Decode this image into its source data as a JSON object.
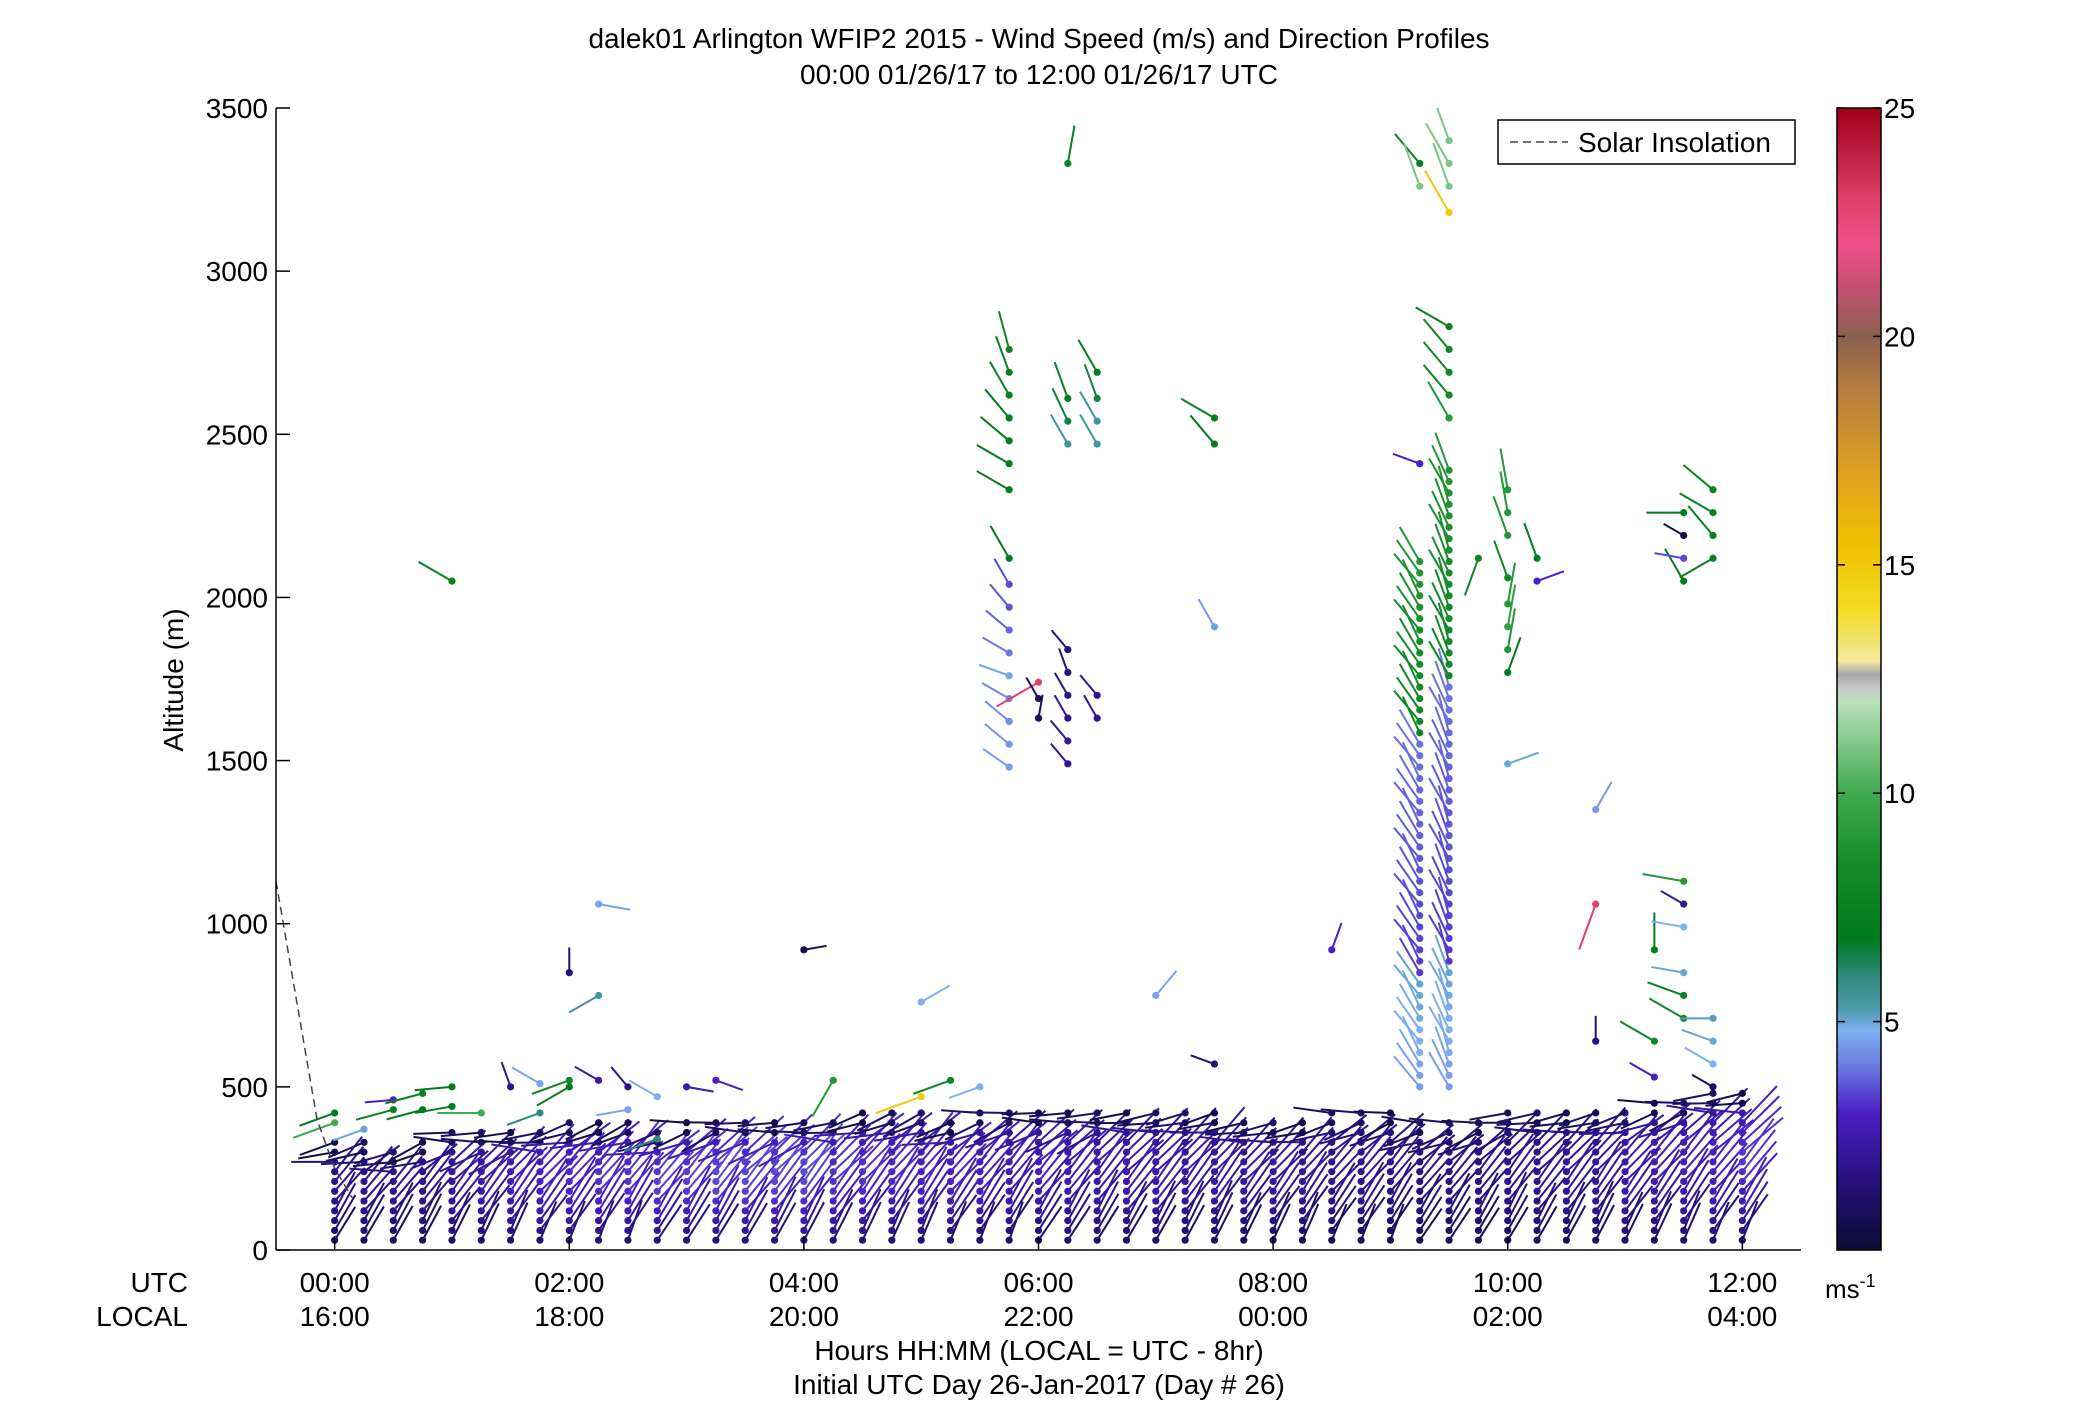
{
  "title": {
    "line1": "dalek01 Arlington WFIP2 2015 - Wind Speed (m/s) and Direction Profiles",
    "line2": "00:00 01/26/17 to 12:00 01/26/17  UTC"
  },
  "footer": {
    "line1": "Hours HH:MM  (LOCAL = UTC - 8hr)",
    "line2": "Initial UTC Day 26-Jan-2017 (Day # 26)"
  },
  "row_labels": {
    "utc": "UTC",
    "local": "LOCAL"
  },
  "legend": {
    "label": "Solar Insolation"
  },
  "colorbar": {
    "unit_base": "ms",
    "unit_exp": "-1",
    "ticks": [
      "5",
      "10",
      "15",
      "20",
      "25"
    ],
    "range": [
      0,
      25
    ],
    "stops": [
      {
        "v": 0,
        "c": "#0b0b33"
      },
      {
        "v": 1.5,
        "c": "#26107a"
      },
      {
        "v": 3,
        "c": "#4a1ec4"
      },
      {
        "v": 4,
        "c": "#6a78e0"
      },
      {
        "v": 4.8,
        "c": "#7fb0f2"
      },
      {
        "v": 5.3,
        "c": "#4a9aa8"
      },
      {
        "v": 6,
        "c": "#2e8a7a"
      },
      {
        "v": 6.8,
        "c": "#007a1e"
      },
      {
        "v": 8.5,
        "c": "#168c2a"
      },
      {
        "v": 10,
        "c": "#40aa50"
      },
      {
        "v": 12,
        "c": "#b9e0b9"
      },
      {
        "v": 12.3,
        "c": "#c8c8c8"
      },
      {
        "v": 12.6,
        "c": "#a8a8a8"
      },
      {
        "v": 12.9,
        "c": "#f4e8a0"
      },
      {
        "v": 14,
        "c": "#f0dc20"
      },
      {
        "v": 15.5,
        "c": "#f0c000"
      },
      {
        "v": 17,
        "c": "#e0a020"
      },
      {
        "v": 19,
        "c": "#b07a40"
      },
      {
        "v": 20,
        "c": "#8a6050"
      },
      {
        "v": 21,
        "c": "#c05070"
      },
      {
        "v": 22,
        "c": "#f0508a"
      },
      {
        "v": 23,
        "c": "#e0406a"
      },
      {
        "v": 25,
        "c": "#a00018"
      }
    ]
  },
  "chart_data": {
    "type": "scatter",
    "title": "dalek01 Arlington WFIP2 2015 - Wind Speed (m/s) and Direction Profiles",
    "subtitle": "00:00 01/26/17 to 12:00 01/26/17  UTC",
    "xlabel": "Hours HH:MM  (LOCAL = UTC - 8hr)",
    "ylabel": "Altitude (m)",
    "xlim": [
      -0.5,
      12.5
    ],
    "ylim": [
      0,
      3500
    ],
    "yticks": [
      "0",
      "500",
      "1000",
      "1500",
      "2000",
      "2500",
      "3000",
      "3500"
    ],
    "xticks_utc": [
      "00:00",
      "02:00",
      "04:00",
      "06:00",
      "08:00",
      "10:00",
      "12:00"
    ],
    "xticks_local": [
      "16:00",
      "18:00",
      "20:00",
      "22:00",
      "00:00",
      "02:00",
      "04:00"
    ],
    "grid": false,
    "legend_position": "top-right",
    "solar_insolation": {
      "style": "dashed",
      "color": "#444444",
      "x": [
        -0.5,
        -0.15,
        0.0,
        0.15
      ],
      "y": [
        1130,
        400,
        250,
        160
      ]
    },
    "profiles": {
      "x_start": 0.0,
      "x_step": 0.25,
      "x_end": 12.0,
      "altitude_step": 30,
      "lowlevel_top": [
        340,
        330,
        320,
        330,
        360,
        360,
        370,
        380,
        390,
        390,
        400,
        380,
        390,
        400,
        400,
        410,
        410,
        400,
        420,
        420,
        420,
        410,
        420,
        420,
        430,
        420,
        420,
        430,
        420,
        420,
        420,
        410,
        400,
        400,
        420,
        420,
        430,
        410,
        400,
        400,
        420,
        420,
        420,
        430,
        440,
        450,
        470,
        480,
        490
      ],
      "lowlevel_speed": [
        1.5,
        1.5,
        1.5,
        1.5,
        1.8,
        2,
        2.2,
        2.4,
        2.5,
        2.6,
        2.6,
        2.7,
        2.7,
        2.8,
        2.8,
        2.8,
        2.8,
        2.6,
        2.6,
        2.5,
        2.4,
        2.4,
        2.3,
        2.2,
        2.2,
        2.1,
        2,
        2,
        2,
        1.9,
        1.9,
        1.8,
        1.8,
        1.7,
        1.6,
        1.6,
        1.5,
        1.4,
        1.4,
        1.4,
        1.5,
        1.6,
        1.7,
        1.8,
        2,
        2.1,
        2.2,
        2.4,
        2.6
      ]
    },
    "elevated_barbs": [
      {
        "x": 0.0,
        "y": 420,
        "speed": 7,
        "dir": 250
      },
      {
        "x": 0.0,
        "y": 390,
        "speed": 10,
        "dir": 250
      },
      {
        "x": 0.25,
        "y": 370,
        "speed": 5,
        "dir": 250
      },
      {
        "x": 0.5,
        "y": 430,
        "speed": 7.5,
        "dir": 255
      },
      {
        "x": 0.5,
        "y": 460,
        "speed": 3,
        "dir": 265
      },
      {
        "x": 0.75,
        "y": 480,
        "speed": 7.5,
        "dir": 255
      },
      {
        "x": 0.75,
        "y": 430,
        "speed": 7,
        "dir": 255
      },
      {
        "x": 1.0,
        "y": 500,
        "speed": 7,
        "dir": 265
      },
      {
        "x": 1.0,
        "y": 440,
        "speed": 7,
        "dir": 260
      },
      {
        "x": 1.0,
        "y": 2050,
        "speed": 7.5,
        "dir": 300
      },
      {
        "x": 1.25,
        "y": 420,
        "speed": 10,
        "dir": 270
      },
      {
        "x": 1.5,
        "y": 500,
        "speed": 2,
        "dir": 340
      },
      {
        "x": 1.75,
        "y": 510,
        "speed": 4.6,
        "dir": 300
      },
      {
        "x": 1.75,
        "y": 420,
        "speed": 6,
        "dir": 250
      },
      {
        "x": 2.0,
        "y": 850,
        "speed": 1.5,
        "dir": 0
      },
      {
        "x": 2.0,
        "y": 520,
        "speed": 8,
        "dir": 250
      },
      {
        "x": 2.0,
        "y": 500,
        "speed": 7,
        "dir": 240
      },
      {
        "x": 2.25,
        "y": 780,
        "speed": 5.5,
        "dir": 240
      },
      {
        "x": 2.25,
        "y": 520,
        "speed": 2.5,
        "dir": 300
      },
      {
        "x": 2.25,
        "y": 1060,
        "speed": 4.6,
        "dir": 100
      },
      {
        "x": 2.5,
        "y": 430,
        "speed": 4.6,
        "dir": 260
      },
      {
        "x": 2.5,
        "y": 500,
        "speed": 1.8,
        "dir": 320
      },
      {
        "x": 2.75,
        "y": 470,
        "speed": 4.8,
        "dir": 300
      },
      {
        "x": 2.75,
        "y": 340,
        "speed": 6,
        "dir": 250
      },
      {
        "x": 3.0,
        "y": 500,
        "speed": 2.5,
        "dir": 100
      },
      {
        "x": 3.25,
        "y": 520,
        "speed": 3,
        "dir": 110
      },
      {
        "x": 4.0,
        "y": 920,
        "speed": 0.5,
        "dir": 80
      },
      {
        "x": 4.25,
        "y": 520,
        "speed": 9,
        "dir": 210
      },
      {
        "x": 5.0,
        "y": 760,
        "speed": 4.8,
        "dir": 60
      },
      {
        "x": 5.0,
        "y": 470,
        "speed": 15,
        "dir": 250
      },
      {
        "x": 5.25,
        "y": 520,
        "speed": 8,
        "dir": 250
      },
      {
        "x": 5.5,
        "y": 500,
        "speed": 4.8,
        "dir": 250
      },
      {
        "x": 5.75,
        "y": 2120,
        "speed": 7,
        "dir": 330
      },
      {
        "x": 5.75,
        "y": 2330,
        "speed": 7,
        "dir": 300
      },
      {
        "x": 5.75,
        "y": 2410,
        "speed": 7,
        "dir": 300
      },
      {
        "x": 5.75,
        "y": 2480,
        "speed": 7,
        "dir": 310
      },
      {
        "x": 5.75,
        "y": 2550,
        "speed": 7,
        "dir": 320
      },
      {
        "x": 5.75,
        "y": 2620,
        "speed": 7.5,
        "dir": 330
      },
      {
        "x": 5.75,
        "y": 2690,
        "speed": 7.5,
        "dir": 340
      },
      {
        "x": 5.75,
        "y": 2760,
        "speed": 8,
        "dir": 345
      },
      {
        "x": 5.75,
        "y": 1480,
        "speed": 4.5,
        "dir": 305
      },
      {
        "x": 5.75,
        "y": 1550,
        "speed": 4.4,
        "dir": 310
      },
      {
        "x": 5.75,
        "y": 1620,
        "speed": 4.3,
        "dir": 310
      },
      {
        "x": 5.75,
        "y": 1690,
        "speed": 4.2,
        "dir": 300
      },
      {
        "x": 5.75,
        "y": 1760,
        "speed": 4.6,
        "dir": 290
      },
      {
        "x": 5.75,
        "y": 1830,
        "speed": 4,
        "dir": 300
      },
      {
        "x": 5.75,
        "y": 1900,
        "speed": 3.8,
        "dir": 310
      },
      {
        "x": 5.75,
        "y": 1970,
        "speed": 3.6,
        "dir": 320
      },
      {
        "x": 5.75,
        "y": 2040,
        "speed": 3.5,
        "dir": 330
      },
      {
        "x": 6.0,
        "y": 1740,
        "speed": 23,
        "dir": 240
      },
      {
        "x": 6.0,
        "y": 1690,
        "speed": 1,
        "dir": 330
      },
      {
        "x": 6.0,
        "y": 1630,
        "speed": 0.8,
        "dir": 10
      },
      {
        "x": 6.25,
        "y": 1490,
        "speed": 2,
        "dir": 320
      },
      {
        "x": 6.25,
        "y": 1560,
        "speed": 2.2,
        "dir": 320
      },
      {
        "x": 6.25,
        "y": 1630,
        "speed": 2,
        "dir": 330
      },
      {
        "x": 6.25,
        "y": 1700,
        "speed": 1.8,
        "dir": 330
      },
      {
        "x": 6.25,
        "y": 1770,
        "speed": 1.6,
        "dir": 340
      },
      {
        "x": 6.25,
        "y": 1840,
        "speed": 1.5,
        "dir": 320
      },
      {
        "x": 6.25,
        "y": 2470,
        "speed": 5.5,
        "dir": 330
      },
      {
        "x": 6.25,
        "y": 2540,
        "speed": 6.5,
        "dir": 335
      },
      {
        "x": 6.25,
        "y": 2610,
        "speed": 7.5,
        "dir": 340
      },
      {
        "x": 6.25,
        "y": 3330,
        "speed": 7.5,
        "dir": 10
      },
      {
        "x": 6.5,
        "y": 1630,
        "speed": 2,
        "dir": 330
      },
      {
        "x": 6.5,
        "y": 1700,
        "speed": 2,
        "dir": 320
      },
      {
        "x": 6.5,
        "y": 2470,
        "speed": 5.5,
        "dir": 330
      },
      {
        "x": 6.5,
        "y": 2540,
        "speed": 5.5,
        "dir": 330
      },
      {
        "x": 6.5,
        "y": 2610,
        "speed": 6.5,
        "dir": 340
      },
      {
        "x": 6.5,
        "y": 2690,
        "speed": 7,
        "dir": 330
      },
      {
        "x": 7.0,
        "y": 780,
        "speed": 4.6,
        "dir": 40
      },
      {
        "x": 7.5,
        "y": 1910,
        "speed": 4.5,
        "dir": 330
      },
      {
        "x": 7.5,
        "y": 2470,
        "speed": 7,
        "dir": 320
      },
      {
        "x": 7.5,
        "y": 2550,
        "speed": 7.5,
        "dir": 300
      },
      {
        "x": 7.5,
        "y": 570,
        "speed": 1.5,
        "dir": 290
      },
      {
        "x": 8.5,
        "y": 920,
        "speed": 3,
        "dir": 20
      },
      {
        "x": 9.25,
        "y": 2410,
        "speed": 3,
        "dir": 290
      },
      {
        "x": 9.25,
        "y": 3330,
        "speed": 7.5,
        "dir": 320
      },
      {
        "x": 9.25,
        "y": 3260,
        "speed": 11,
        "dir": 340
      },
      {
        "x": 9.5,
        "y": 3180,
        "speed": 15,
        "dir": 330
      },
      {
        "x": 9.5,
        "y": 3260,
        "speed": 11,
        "dir": 340
      },
      {
        "x": 9.5,
        "y": 3330,
        "speed": 11,
        "dir": 330
      },
      {
        "x": 9.5,
        "y": 3400,
        "speed": 11,
        "dir": 340
      },
      {
        "x": 9.5,
        "y": 2550,
        "speed": 9,
        "dir": 330
      },
      {
        "x": 9.5,
        "y": 2620,
        "speed": 8,
        "dir": 320
      },
      {
        "x": 9.5,
        "y": 2690,
        "speed": 8,
        "dir": 320
      },
      {
        "x": 9.5,
        "y": 2760,
        "speed": 8,
        "dir": 320
      },
      {
        "x": 9.5,
        "y": 2830,
        "speed": 7.5,
        "dir": 300
      },
      {
        "x": 9.75,
        "y": 2120,
        "speed": 8,
        "dir": 200
      },
      {
        "x": 10.0,
        "y": 1770,
        "speed": 7,
        "dir": 20
      },
      {
        "x": 10.0,
        "y": 1840,
        "speed": 9,
        "dir": 10
      },
      {
        "x": 10.0,
        "y": 1910,
        "speed": 9.5,
        "dir": 10
      },
      {
        "x": 10.0,
        "y": 1980,
        "speed": 9,
        "dir": 10
      },
      {
        "x": 10.0,
        "y": 2060,
        "speed": 8,
        "dir": 340
      },
      {
        "x": 10.0,
        "y": 2190,
        "speed": 9,
        "dir": 340
      },
      {
        "x": 10.0,
        "y": 2260,
        "speed": 9,
        "dir": 350
      },
      {
        "x": 10.0,
        "y": 2330,
        "speed": 9,
        "dir": 350
      },
      {
        "x": 10.0,
        "y": 1490,
        "speed": 5,
        "dir": 70
      },
      {
        "x": 10.25,
        "y": 2050,
        "speed": 3,
        "dir": 70
      },
      {
        "x": 10.25,
        "y": 2120,
        "speed": 7,
        "dir": 340
      },
      {
        "x": 10.75,
        "y": 1350,
        "speed": 4.5,
        "dir": 30
      },
      {
        "x": 10.75,
        "y": 1060,
        "speed": 23,
        "dir": 200
      },
      {
        "x": 10.75,
        "y": 640,
        "speed": 1.5,
        "dir": 0
      },
      {
        "x": 11.5,
        "y": 2050,
        "speed": 7,
        "dir": 330
      },
      {
        "x": 11.5,
        "y": 2120,
        "speed": 3.5,
        "dir": 280
      },
      {
        "x": 11.5,
        "y": 2190,
        "speed": 0.5,
        "dir": 300
      },
      {
        "x": 11.5,
        "y": 2260,
        "speed": 7,
        "dir": 270
      },
      {
        "x": 11.75,
        "y": 2120,
        "speed": 7.5,
        "dir": 240
      },
      {
        "x": 11.75,
        "y": 2190,
        "speed": 7.5,
        "dir": 320
      },
      {
        "x": 11.75,
        "y": 2260,
        "speed": 7.5,
        "dir": 300
      },
      {
        "x": 11.75,
        "y": 2330,
        "speed": 7.5,
        "dir": 310
      },
      {
        "x": 11.5,
        "y": 1060,
        "speed": 2,
        "dir": 300
      },
      {
        "x": 11.5,
        "y": 1130,
        "speed": 9,
        "dir": 280
      },
      {
        "x": 11.25,
        "y": 920,
        "speed": 7,
        "dir": 0
      },
      {
        "x": 11.5,
        "y": 850,
        "speed": 5,
        "dir": 280
      },
      {
        "x": 11.5,
        "y": 780,
        "speed": 7.5,
        "dir": 290
      },
      {
        "x": 11.5,
        "y": 710,
        "speed": 8,
        "dir": 300
      },
      {
        "x": 11.5,
        "y": 990,
        "speed": 4.8,
        "dir": 280
      },
      {
        "x": 11.75,
        "y": 570,
        "speed": 4.8,
        "dir": 300
      },
      {
        "x": 11.75,
        "y": 640,
        "speed": 5,
        "dir": 290
      },
      {
        "x": 11.75,
        "y": 710,
        "speed": 5.2,
        "dir": 270
      },
      {
        "x": 11.75,
        "y": 500,
        "speed": 1,
        "dir": 300
      },
      {
        "x": 11.25,
        "y": 640,
        "speed": 8,
        "dir": 300
      },
      {
        "x": 11.25,
        "y": 530,
        "speed": 3,
        "dir": 300
      }
    ],
    "column_barbs": [
      {
        "x": 9.25,
        "y0": 500,
        "y1": 2130,
        "dir": 330
      },
      {
        "x": 9.5,
        "y0": 500,
        "y1": 2400,
        "dir": 340
      }
    ],
    "colorbar_label": "ms-1"
  }
}
